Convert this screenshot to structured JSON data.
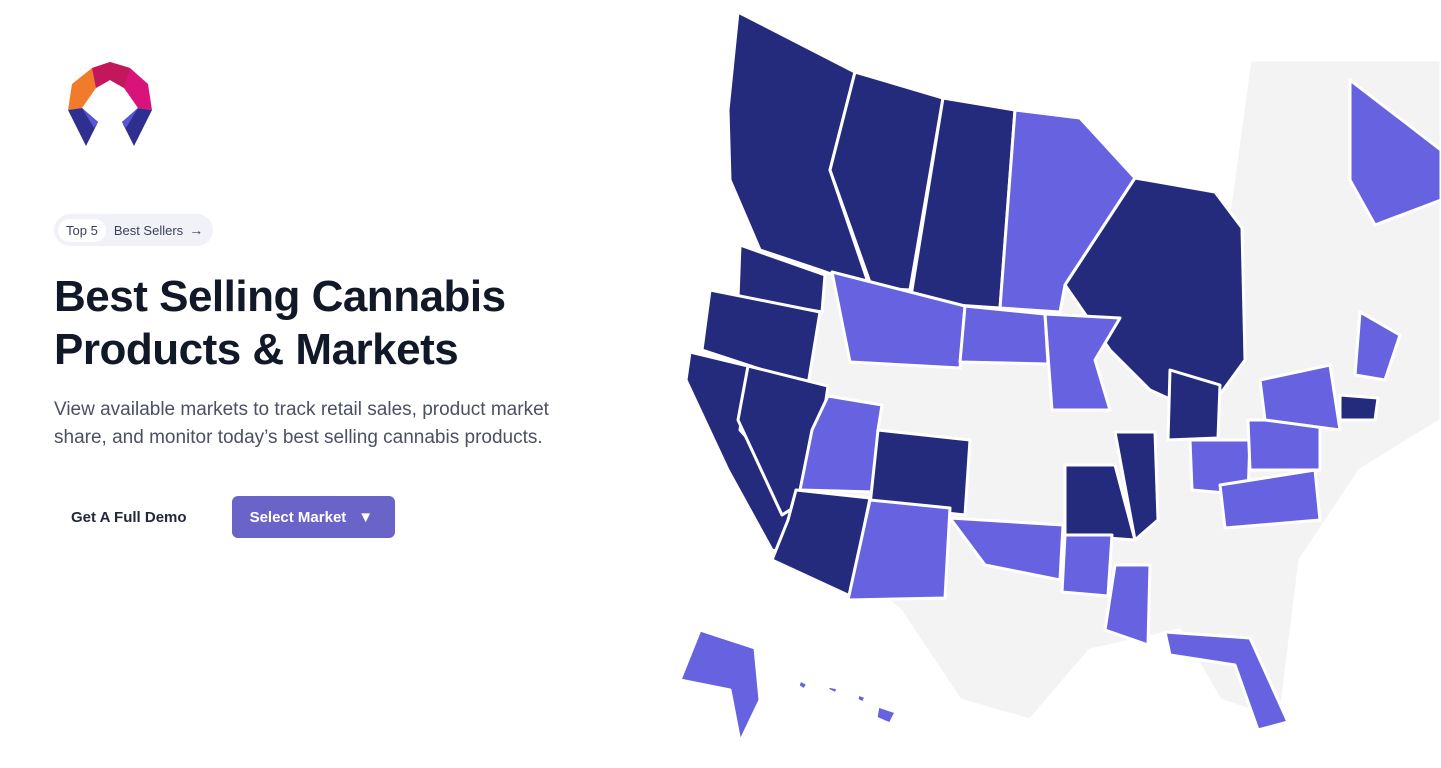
{
  "brand": {
    "logo_icon": "geometric-arch-logo-icon"
  },
  "pill": {
    "tag": "Top 5",
    "link_label": "Best Sellers",
    "link_icon": "arrow-right-icon"
  },
  "hero": {
    "title_line1": "Best Selling Cannabis",
    "title_line2": "Products & Markets",
    "description": "View available markets to track retail sales, product market share, and monitor today’s best selling cannabis products."
  },
  "cta": {
    "demo_label": "Get A Full Demo",
    "select_label": "Select Market",
    "select_icon": "triangle-down-icon"
  },
  "map": {
    "colors": {
      "dark": "#252b7c",
      "light": "#6763e0",
      "inactive": "#f3f3f3"
    }
  }
}
